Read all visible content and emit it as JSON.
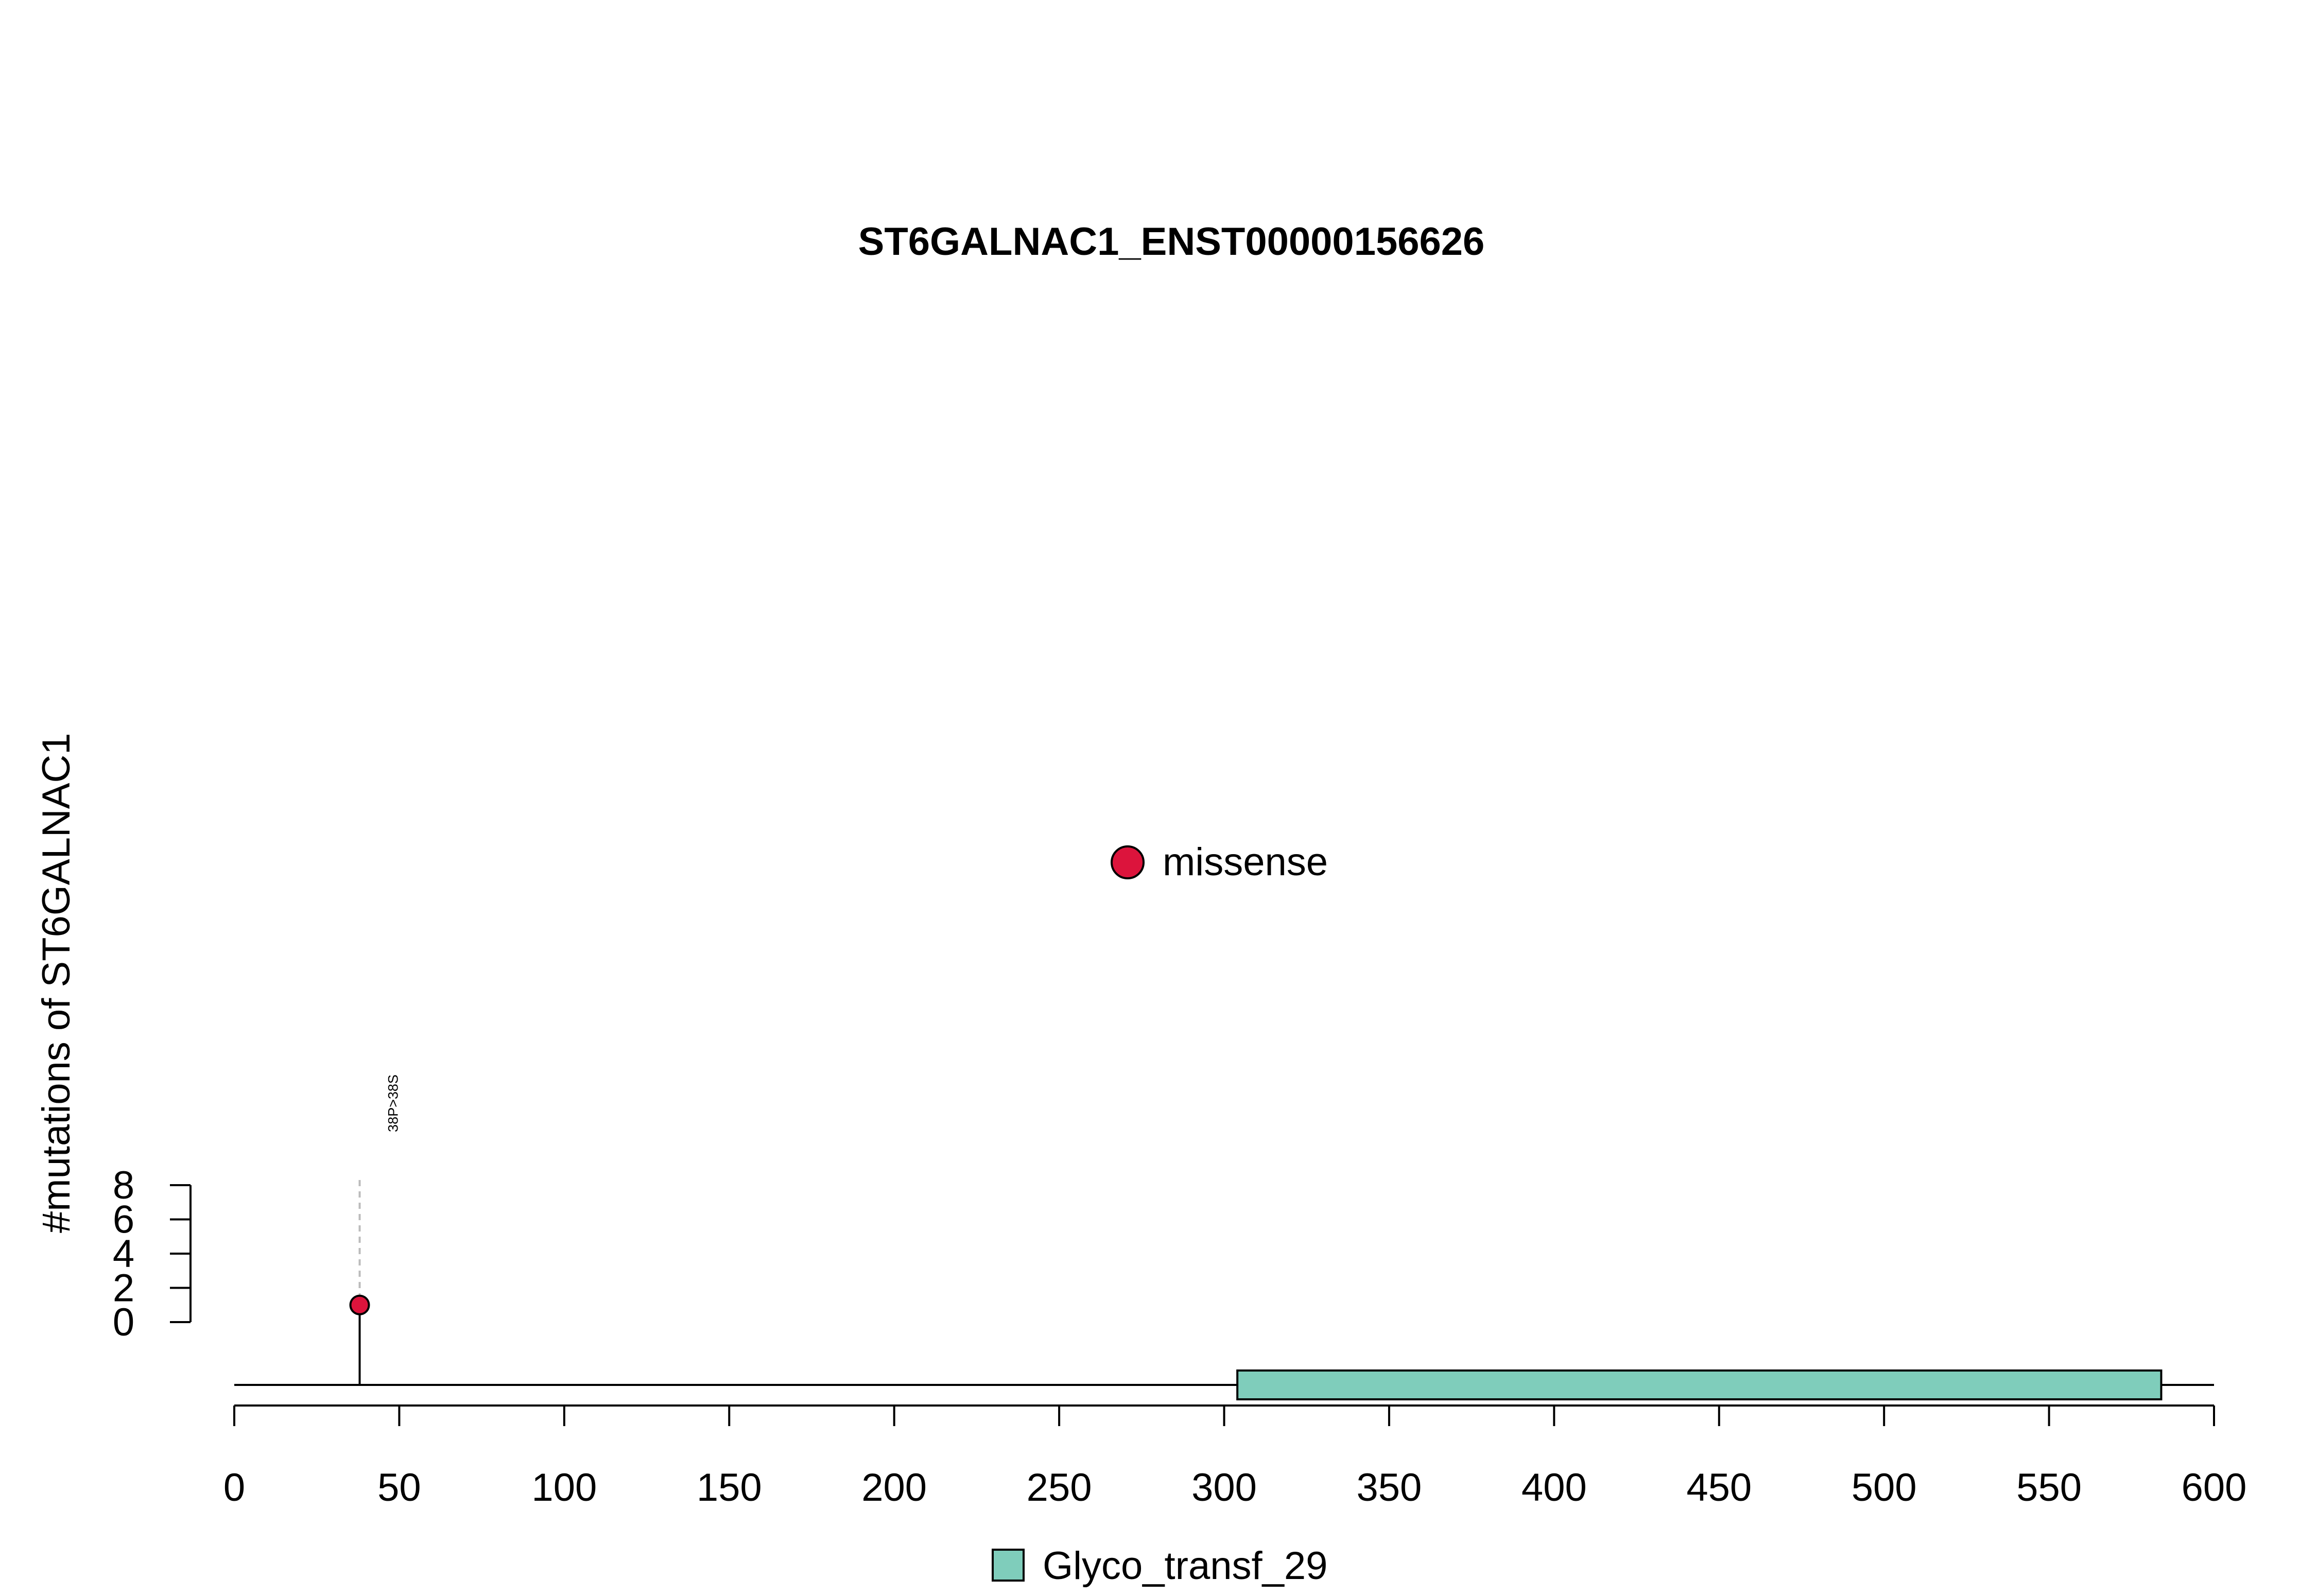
{
  "chart_data": {
    "type": "lollipop",
    "title": "ST6GALNAC1_ENST00000156626",
    "ylabel": "#mutations of ST6GALNAC1",
    "xlabel": "",
    "x_range": [
      0,
      600
    ],
    "x_ticks": [
      "0",
      "50",
      "100",
      "150",
      "200",
      "250",
      "300",
      "350",
      "400",
      "450",
      "500",
      "550",
      "600"
    ],
    "y_range": [
      0,
      8
    ],
    "y_ticks": [
      "0",
      "2",
      "4",
      "6",
      "8"
    ],
    "protein_length": 600,
    "domains": [
      {
        "name": "Glyco_transf_29",
        "start": 304,
        "end": 584,
        "color": "#7fcdbb"
      }
    ],
    "mutations": [
      {
        "position": 38,
        "count": 1,
        "label": "38P>38S",
        "type": "missense"
      }
    ],
    "legend": {
      "mutation_types": [
        {
          "name": "missense",
          "color": "#dc143c"
        }
      ],
      "domains": [
        {
          "name": "Glyco_transf_29",
          "color": "#7fcdbb"
        }
      ]
    }
  }
}
